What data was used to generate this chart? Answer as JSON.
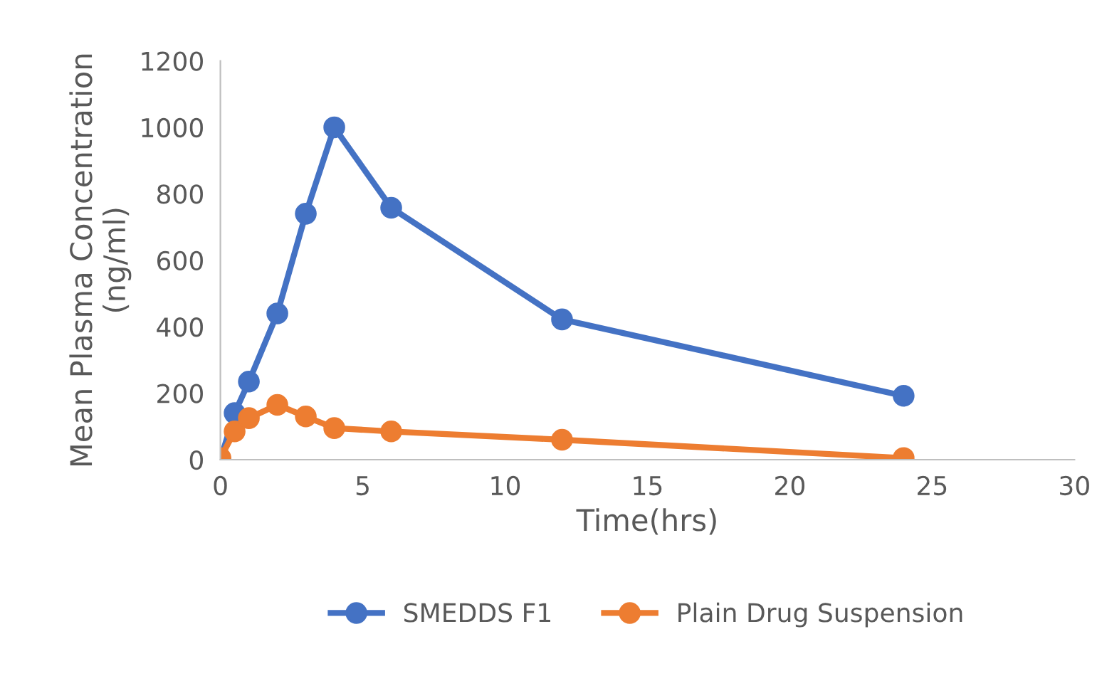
{
  "chart_data": {
    "type": "line",
    "xlabel": "Time(hrs)",
    "ylabel": "Mean Plasma Concentration\n(ng/ml)",
    "x": [
      0,
      0.5,
      1,
      2,
      3,
      4,
      6,
      12,
      24
    ],
    "series": [
      {
        "name": "SMEDDS F1",
        "color": "#4472c4",
        "values": [
          0,
          140,
          235,
          440,
          740,
          1000,
          758,
          422,
          192
        ]
      },
      {
        "name": "Plain Drug Suspension",
        "color": "#ed7d31",
        "values": [
          5,
          85,
          125,
          165,
          130,
          95,
          85,
          60,
          5
        ]
      }
    ],
    "xlim": [
      0,
      30
    ],
    "xticks": [
      0,
      5,
      10,
      15,
      20,
      25,
      30
    ],
    "ylim": [
      0,
      1200
    ],
    "yticks": [
      0,
      200,
      400,
      600,
      800,
      1000,
      1200
    ],
    "grid": false,
    "legend": "bottom",
    "marker": "circle",
    "line_style": "solid"
  }
}
